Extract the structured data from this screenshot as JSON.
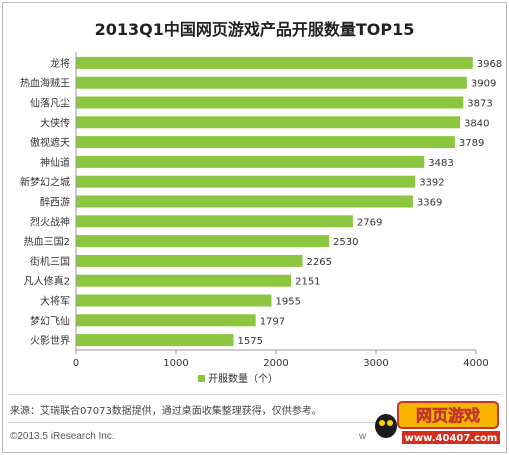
{
  "chart_data": {
    "type": "bar",
    "orientation": "horizontal",
    "title": "2013Q1中国网页游戏产品开服数量TOP15",
    "categories": [
      "龙将",
      "热血海贼王",
      "仙落凡尘",
      "大侠传",
      "傲视遮天",
      "神仙道",
      "新梦幻之城",
      "醉西游",
      "烈火战神",
      "热血三国2",
      "街机三国",
      "凡人修真2",
      "大将军",
      "梦幻飞仙",
      "火影世界"
    ],
    "series": [
      {
        "name": "开服数量（个）",
        "values": [
          3968,
          3909,
          3873,
          3840,
          3789,
          3483,
          3392,
          3369,
          2769,
          2530,
          2265,
          2151,
          1955,
          1797,
          1575
        ]
      }
    ],
    "xlim": [
      0,
      4000
    ],
    "xticks": [
      "0",
      "1000",
      "2000",
      "3000",
      "4000"
    ],
    "grid": false,
    "legend_position": "bottom",
    "bar_color": "#8cc63f"
  },
  "footer": {
    "source": "来源：艾瑞联合07073数据提供，通过桌面收集整理获得，仅供参考。",
    "copyright": "©2013.5 iResearch Inc.",
    "watermark": "w"
  },
  "logo": {
    "text": "网页游戏",
    "url_text": "www.40407.com"
  }
}
